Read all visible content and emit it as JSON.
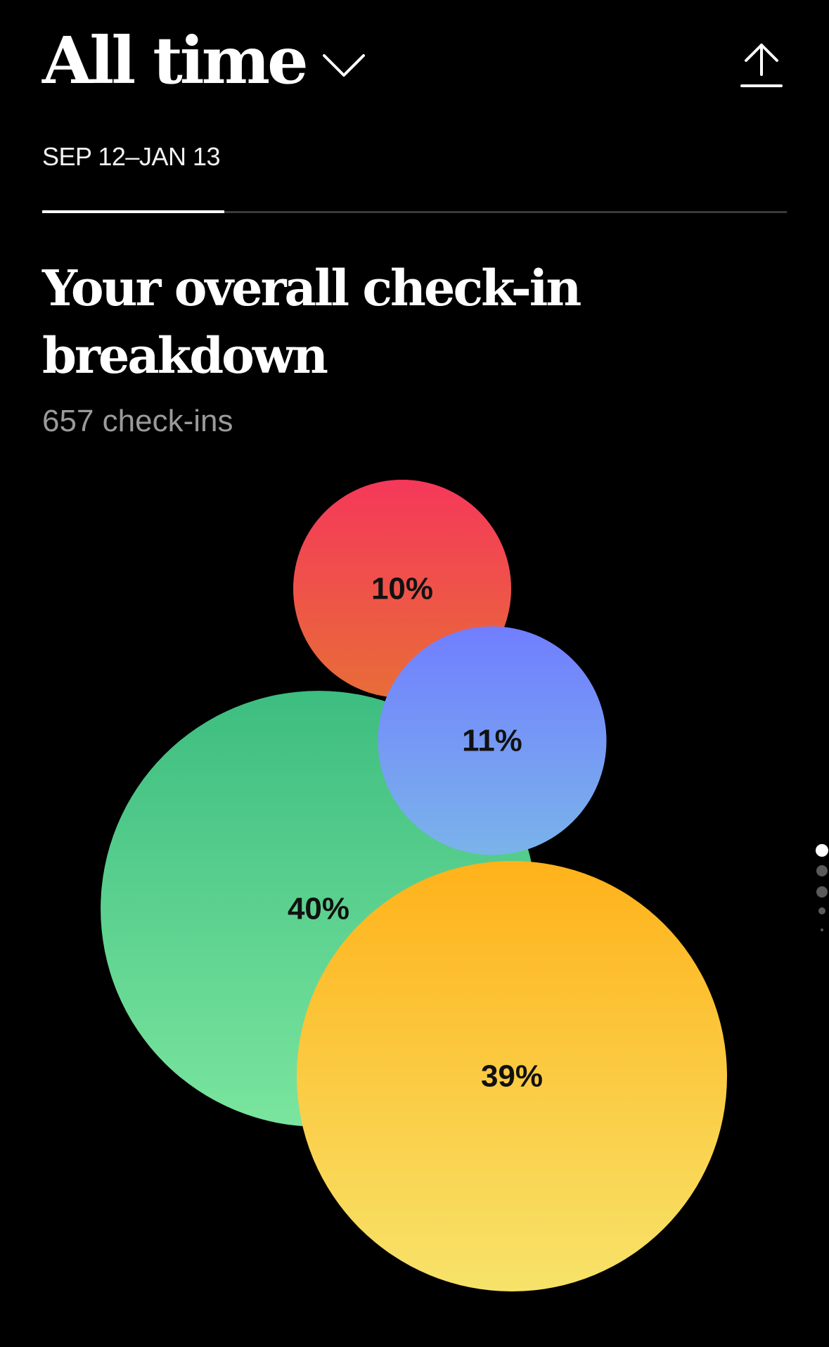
{
  "header": {
    "range_label": "All time",
    "chevron_icon": "chevron-down-icon",
    "share_icon": "share-upload-icon"
  },
  "date_range": "SEP 12–JAN 13",
  "progress": {
    "fraction": 0.245
  },
  "headline": {
    "line1": "Your overall check-in",
    "line2": "breakdown"
  },
  "checkin_count": "657 check-ins",
  "chart_data": {
    "type": "bubble",
    "title": "",
    "series": [
      {
        "value": 10,
        "label": "10%",
        "colors": [
          "#f5385a",
          "#e86d38"
        ]
      },
      {
        "value": 40,
        "label": "40%",
        "colors": [
          "#3dbd80",
          "#7ae59e"
        ]
      },
      {
        "value": 11,
        "label": "11%",
        "colors": [
          "#717eff",
          "#7ab3ea"
        ]
      },
      {
        "value": 39,
        "label": "39%",
        "colors": [
          "#ffb21a",
          "#f7e36a"
        ]
      }
    ]
  },
  "pager": {
    "pages": 5,
    "current": 0
  },
  "colors": {
    "background": "#000000",
    "text": "#ffffff",
    "muted": "#9a9a9a"
  }
}
